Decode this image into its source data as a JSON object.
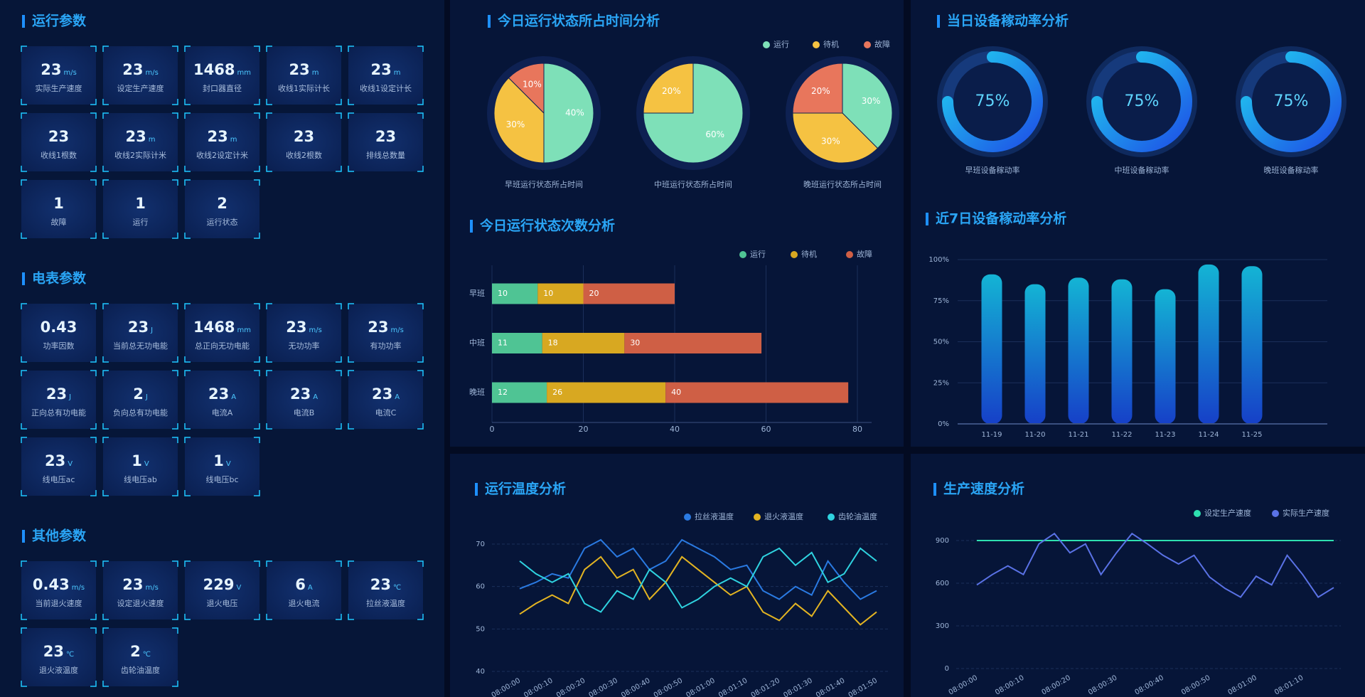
{
  "sections": [
    {
      "title": "运行参数",
      "cards": [
        {
          "value": 23,
          "unit": "m/s",
          "label": "实际生产速度"
        },
        {
          "value": 23,
          "unit": "m/s",
          "label": "设定生产速度"
        },
        {
          "value": 1468,
          "unit": "mm",
          "label": "封口器直径"
        },
        {
          "value": 23,
          "unit": "m",
          "label": "收线1实际计长"
        },
        {
          "value": 23,
          "unit": "m",
          "label": "收线1设定计长"
        },
        {
          "value": 23,
          "label": "收线1根数"
        },
        {
          "value": 23,
          "unit": "m",
          "label": "收线2实际计米"
        },
        {
          "value": 23,
          "unit": "m",
          "label": "收线2设定计米"
        },
        {
          "value": 23,
          "label": "收线2根数"
        },
        {
          "value": 23,
          "label": "排线总数量"
        },
        {
          "value": 1,
          "label": "故障"
        },
        {
          "value": 1,
          "label": "运行"
        },
        {
          "value": 2,
          "label": "运行状态"
        }
      ]
    },
    {
      "title": "电表参数",
      "cards": [
        {
          "value": 0.43,
          "label": "功率因数"
        },
        {
          "value": 23,
          "unit": "J",
          "label": "当前总无功电能"
        },
        {
          "value": 1468,
          "unit": "mm",
          "label": "总正向无功电能"
        },
        {
          "value": 23,
          "unit": "m/s",
          "label": "无功功率"
        },
        {
          "value": 23,
          "unit": "m/s",
          "label": "有功功率"
        },
        {
          "value": 23,
          "unit": "J",
          "label": "正向总有功电能"
        },
        {
          "value": 2,
          "unit": "J",
          "label": "负向总有功电能"
        },
        {
          "value": 23,
          "unit": "A",
          "label": "电流A"
        },
        {
          "value": 23,
          "unit": "A",
          "label": "电流B"
        },
        {
          "value": 23,
          "unit": "A",
          "label": "电流C"
        },
        {
          "value": 23,
          "unit": "V",
          "label": "线电压ac"
        },
        {
          "value": 1,
          "unit": "V",
          "label": "线电压ab"
        },
        {
          "value": 1,
          "unit": "V",
          "label": "线电压bc"
        }
      ]
    },
    {
      "title": "其他参数",
      "cards": [
        {
          "value": 0.43,
          "unit": "m/s",
          "label": "当前退火速度"
        },
        {
          "value": 23,
          "unit": "m/s",
          "label": "设定退火速度"
        },
        {
          "value": 229,
          "unit": "V",
          "label": "退火电压"
        },
        {
          "value": 6,
          "unit": "A",
          "label": "退火电流"
        },
        {
          "value": 23,
          "unit": "℃",
          "label": "拉丝液温度"
        },
        {
          "value": 23,
          "unit": "℃",
          "label": "退火液温度"
        },
        {
          "value": 2,
          "unit": "℃",
          "label": "齿轮油温度"
        }
      ]
    }
  ],
  "chart_data": [
    {
      "type": "pie",
      "title": "今日运行状态所占时间分析",
      "categories": [
        "运行",
        "待机",
        "故障"
      ],
      "colors": [
        "#7ee0b8",
        "#f5c242",
        "#e8765c"
      ],
      "pies": [
        {
          "name": "早班运行状态所占时间",
          "values": [
            40,
            30,
            10
          ],
          "value_labels": [
            "40%",
            "30%",
            "10%"
          ]
        },
        {
          "name": "中班运行状态所占时间",
          "values": [
            60,
            20,
            null
          ],
          "value_labels": [
            "60%",
            "20%",
            null
          ]
        },
        {
          "name": "晚班运行状态所占时间",
          "values": [
            30,
            30,
            20
          ],
          "value_labels": [
            "30%",
            "30%",
            "20%"
          ]
        }
      ]
    },
    {
      "type": "stacked-bar",
      "title": "今日运行状态次数分析",
      "categories": [
        "早班",
        "中班",
        "晚班"
      ],
      "series": [
        {
          "name": "运行",
          "color": "#4fc494",
          "values": [
            10,
            11,
            12
          ]
        },
        {
          "name": "待机",
          "color": "#d8a821",
          "values": [
            10,
            18,
            26
          ]
        },
        {
          "name": "故障",
          "color": "#cf5f45",
          "values": [
            20,
            30,
            40
          ]
        }
      ],
      "xlim": [
        0,
        80
      ],
      "xticks": [
        0,
        20,
        40,
        60,
        80
      ],
      "grid": true
    },
    {
      "type": "gauge",
      "title": "当日设备稼动率分析",
      "categories": [
        "早班设备稼动率",
        "中班设备稼动率",
        "晚班设备稼动率"
      ],
      "values": [
        75,
        75,
        75
      ],
      "value_labels": [
        "75%",
        "75%",
        "75%"
      ],
      "ylim": [
        0,
        100
      ]
    },
    {
      "type": "bar",
      "title": "近7日设备稼动率分析",
      "categories": [
        "11-19",
        "11-20",
        "11-21",
        "11-22",
        "11-23",
        "11-24",
        "11-25"
      ],
      "values": [
        91,
        85,
        89,
        88,
        82,
        97,
        96
      ],
      "color": "#14b4d4",
      "ylim": [
        0,
        100
      ],
      "yticks": [
        {
          "value": 0,
          "label": "0%"
        },
        {
          "value": 25,
          "label": "25%"
        },
        {
          "value": 50,
          "label": "50%"
        },
        {
          "value": 75,
          "label": "75%"
        },
        {
          "value": 100,
          "label": "100%"
        }
      ],
      "grid": true
    },
    {
      "type": "line",
      "title": "运行温度分析",
      "categories": [
        "08:00:00",
        null,
        "08:00:10",
        null,
        "08:00:20",
        null,
        "08:00:30",
        null,
        "08:00:40",
        null,
        "08:00:50",
        null,
        "08:01:00",
        null,
        "08:01:10",
        null,
        "08:01:20",
        null,
        "08:01:30",
        null,
        "08:01:40",
        null,
        "08:01:50"
      ],
      "series": [
        {
          "name": "拉丝液温度",
          "color": "#2a7ae2",
          "values": [
            59.5,
            61,
            63,
            62,
            69,
            71,
            67,
            69,
            64,
            66,
            71,
            69,
            67,
            64,
            65,
            59,
            57,
            60,
            58,
            66,
            61,
            57,
            59
          ]
        },
        {
          "name": "退火液温度",
          "color": "#e3b422",
          "values": [
            53.5,
            56,
            58,
            56,
            64,
            67,
            62,
            64,
            57,
            61,
            67,
            64,
            61,
            58,
            60,
            54,
            52,
            56,
            53,
            59,
            55,
            51,
            54
          ]
        },
        {
          "name": "齿轮油温度",
          "color": "#2fd3e0",
          "values": [
            66,
            63,
            61,
            63,
            56,
            54,
            59,
            57,
            64,
            61,
            55,
            57,
            60,
            62,
            60,
            67,
            69,
            65,
            68,
            61,
            63,
            69,
            66
          ]
        }
      ],
      "ylim": [
        40,
        70
      ],
      "yticks": [
        40,
        50,
        60,
        70
      ],
      "grid": true
    },
    {
      "type": "line",
      "title": "生产速度分析",
      "categories": [
        "08:00:00",
        null,
        null,
        "08:00:10",
        null,
        null,
        "08:00:20",
        null,
        null,
        "08:00:30",
        null,
        null,
        "08:00:40",
        null,
        null,
        "08:00:50",
        null,
        null,
        "08:01:00",
        null,
        null,
        "08:01:10",
        null,
        null
      ],
      "series": [
        {
          "name": "设定生产速度",
          "color": "#2ee0b0",
          "values": [
            900,
            900,
            900,
            900,
            900,
            900,
            900,
            900,
            900,
            900,
            900,
            900,
            900,
            900,
            900,
            900,
            900,
            900,
            900,
            900,
            900,
            900,
            900,
            900
          ]
        },
        {
          "name": "实际生产速度",
          "color": "#5a72e6",
          "values": [
            588,
            661,
            722,
            661,
            876,
            949,
            814,
            876,
            661,
            814,
            949,
            876,
            796,
            735,
            796,
            643,
            563,
            502,
            649,
            588,
            796,
            661,
            502,
            569
          ]
        }
      ],
      "ylim": [
        0,
        900
      ],
      "yticks": [
        0,
        300,
        600,
        900
      ],
      "grid": true
    }
  ]
}
